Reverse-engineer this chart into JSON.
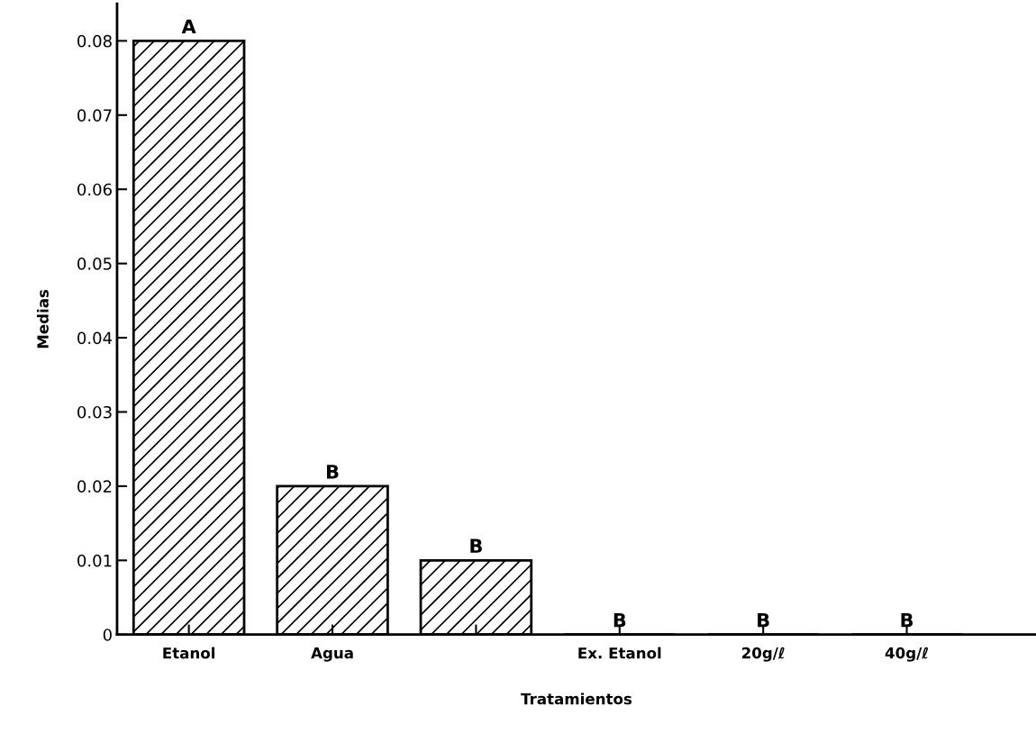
{
  "chart_data": {
    "type": "bar",
    "xlabel": "Tratamientos",
    "ylabel": "Medias",
    "categories": [
      "Etanol",
      "Agua",
      null,
      "Ex. Etanol",
      "20g/ℓ",
      "40g/ℓ"
    ],
    "values": [
      0.08,
      0.02,
      0.01,
      0,
      0,
      0
    ],
    "value_labels": [
      "A",
      "B",
      "B",
      "B",
      "B",
      "B"
    ],
    "color": "#000000",
    "ylim": [
      0,
      0.085
    ],
    "yticks": [
      {
        "value": 0,
        "label": "0"
      },
      0.01,
      0.02,
      0.03,
      0.04,
      0.05,
      0.06,
      0.07,
      0.08
    ],
    "grid": false,
    "legend": false
  }
}
